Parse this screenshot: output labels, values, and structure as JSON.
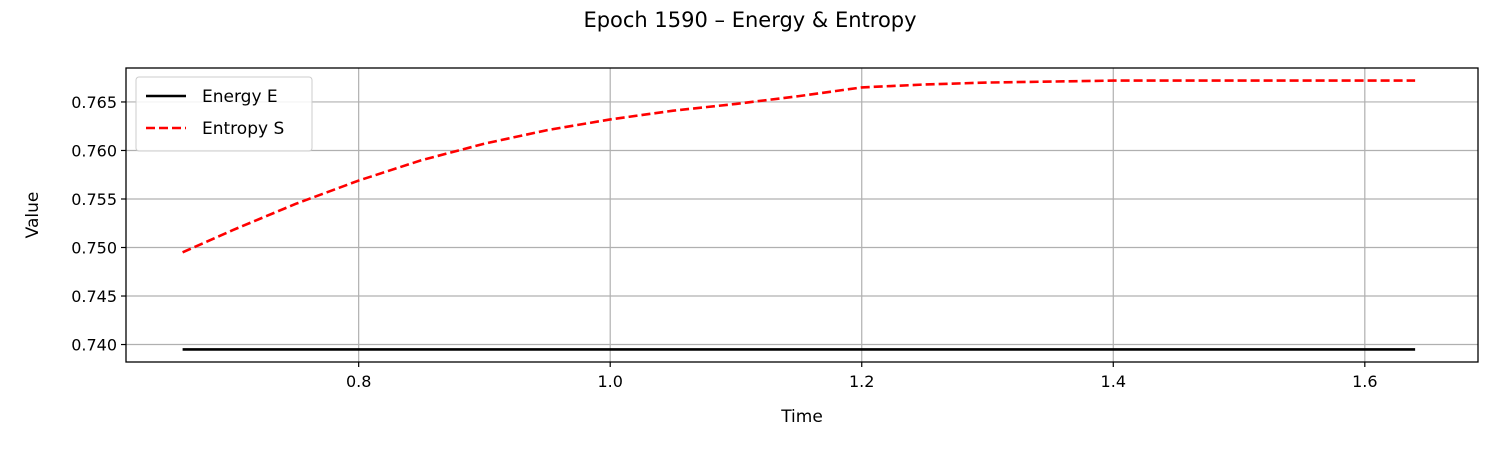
{
  "chart_data": {
    "type": "line",
    "title": "Epoch 1590 – Energy & Entropy",
    "xlabel": "Time",
    "ylabel": "Value",
    "xlim": [
      0.615,
      1.69
    ],
    "ylim": [
      0.7382,
      0.7685
    ],
    "x_ticks": [
      0.8,
      1.0,
      1.2,
      1.4,
      1.6
    ],
    "x_tick_labels": [
      "0.8",
      "1.0",
      "1.2",
      "1.4",
      "1.6"
    ],
    "y_ticks": [
      0.74,
      0.745,
      0.75,
      0.755,
      0.76,
      0.765
    ],
    "y_tick_labels": [
      "0.740",
      "0.745",
      "0.750",
      "0.755",
      "0.760",
      "0.765"
    ],
    "grid": true,
    "legend_position": "upper-left",
    "series": [
      {
        "name": "Energy E",
        "color": "#000000",
        "dash": "solid",
        "x": [
          0.66,
          0.7,
          0.8,
          0.9,
          1.0,
          1.1,
          1.2,
          1.3,
          1.4,
          1.5,
          1.6,
          1.64
        ],
        "y": [
          0.7395,
          0.7395,
          0.7395,
          0.7395,
          0.7395,
          0.7395,
          0.7395,
          0.7395,
          0.7395,
          0.7395,
          0.7395,
          0.7395
        ]
      },
      {
        "name": "Entropy S",
        "color": "#ff0000",
        "dash": "dashed",
        "x": [
          0.66,
          0.7,
          0.75,
          0.8,
          0.85,
          0.9,
          0.95,
          1.0,
          1.05,
          1.1,
          1.15,
          1.2,
          1.25,
          1.3,
          1.35,
          1.4,
          1.45,
          1.5,
          1.55,
          1.6,
          1.64
        ],
        "y": [
          0.7495,
          0.7518,
          0.7545,
          0.7569,
          0.759,
          0.7607,
          0.7621,
          0.7632,
          0.7641,
          0.7648,
          0.7656,
          0.7665,
          0.7668,
          0.767,
          0.7671,
          0.7672,
          0.7672,
          0.7672,
          0.7672,
          0.7672,
          0.7672
        ]
      }
    ]
  }
}
